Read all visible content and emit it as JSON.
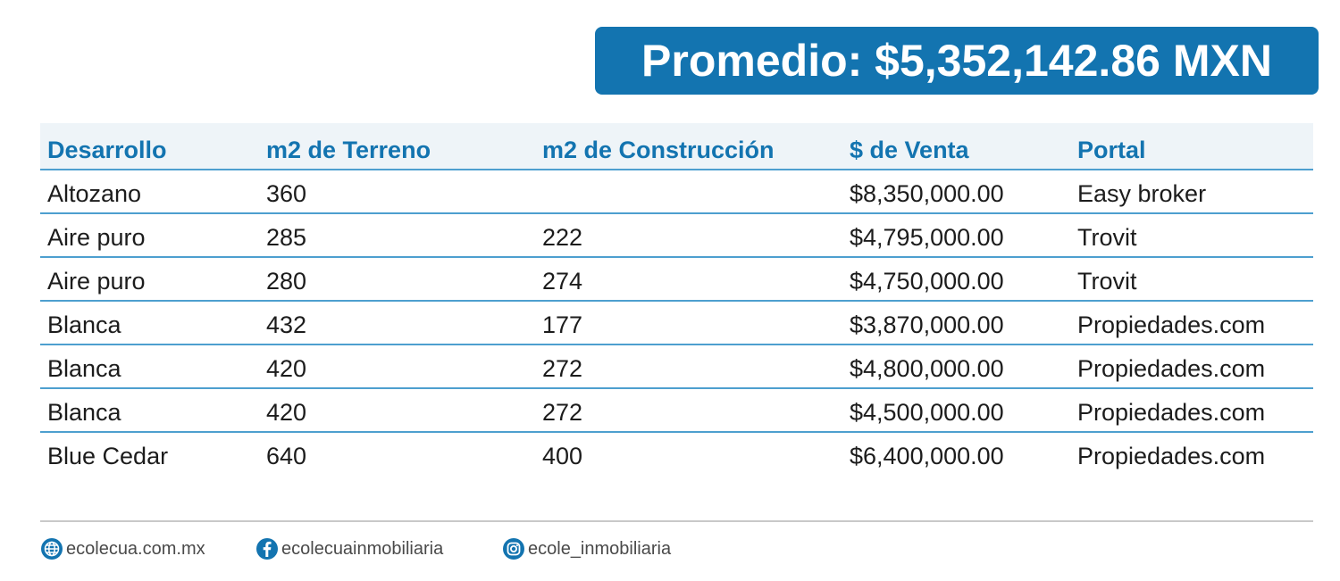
{
  "banner": {
    "text": "Promedio: $5,352,142.86 MXN"
  },
  "table": {
    "headers": [
      "Desarrollo",
      "m2 de Terreno",
      "m2 de Construcción",
      "$ de Venta",
      "Portal"
    ],
    "rows": [
      [
        "Altozano",
        "360",
        "",
        "$8,350,000.00",
        "Easy broker"
      ],
      [
        "Aire puro",
        "285",
        "222",
        "$4,795,000.00",
        "Trovit"
      ],
      [
        "Aire puro",
        "280",
        "274",
        "$4,750,000.00",
        "Trovit"
      ],
      [
        "Blanca",
        "432",
        "177",
        "$3,870,000.00",
        "Propiedades.com"
      ],
      [
        "Blanca",
        "420",
        "272",
        "$4,800,000.00",
        "Propiedades.com"
      ],
      [
        "Blanca",
        "420",
        "272",
        "$4,500,000.00",
        "Propiedades.com"
      ],
      [
        "Blue Cedar",
        "640",
        "400",
        "$6,400,000.00",
        "Propiedades.com"
      ]
    ]
  },
  "footer": {
    "website": {
      "icon": "globe-icon",
      "text": "ecolecua.com.mx"
    },
    "facebook": {
      "icon": "facebook-icon",
      "text": "ecolecuainmobiliaria"
    },
    "instagram": {
      "icon": "instagram-icon",
      "text": "ecole_inmobiliaria"
    }
  },
  "colors": {
    "accent": "#1374b0",
    "rule": "#4d9fcf",
    "header_bg": "#eef4f8"
  }
}
